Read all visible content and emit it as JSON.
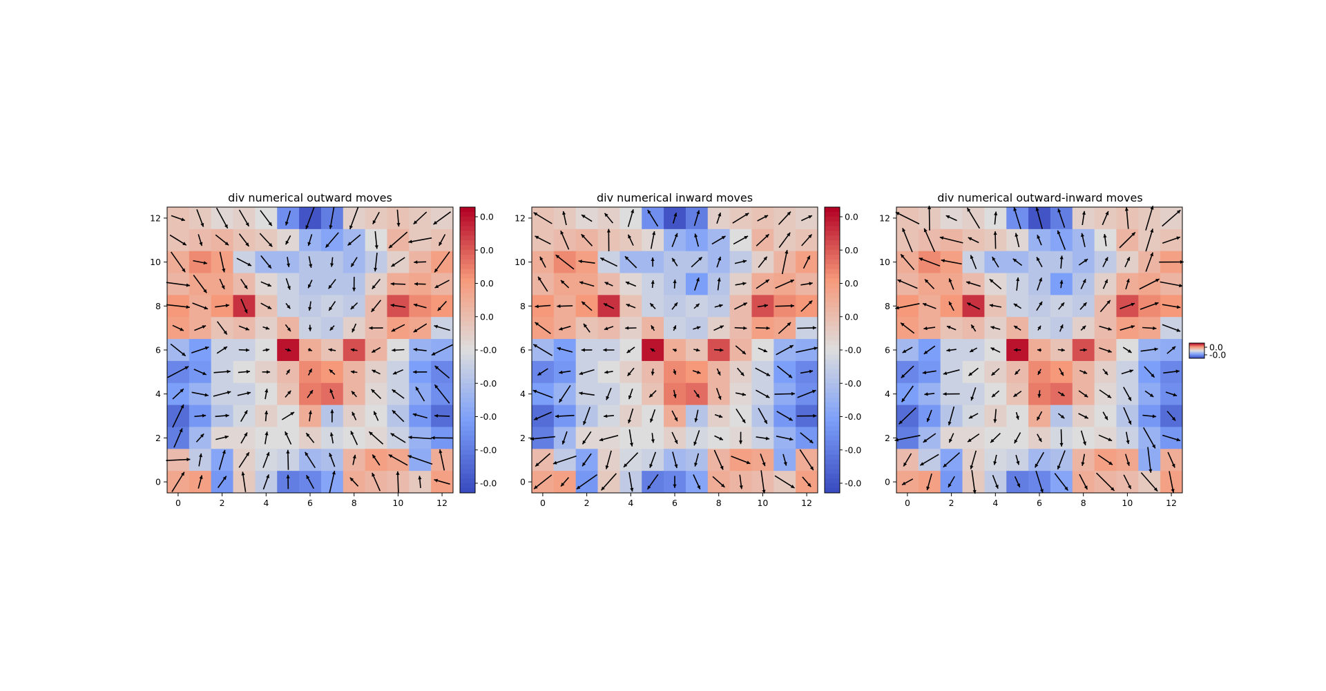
{
  "figure": {
    "background": "#ffffff",
    "colormap": "coolwarm",
    "colors": {
      "cold": "#3b4cc0",
      "neutral": "#dddddd",
      "hot": "#b40426",
      "arrow": "#000000"
    }
  },
  "chart_data": [
    {
      "type": "heatmap",
      "title": "div numerical outward moves",
      "xlabel": "",
      "ylabel": "",
      "grid_size": 13,
      "xlim": [
        -0.5,
        12.5
      ],
      "ylim": [
        -0.5,
        12.5
      ],
      "x_ticks": [
        0,
        2,
        4,
        6,
        8,
        10,
        12
      ],
      "y_ticks": [
        0,
        2,
        4,
        6,
        8,
        10,
        12
      ],
      "overlay": "quiver",
      "colorbar": {
        "tick_labels": [
          "0.0",
          "0.0",
          "0.0",
          "0.0",
          "-0.0",
          "-0.0",
          "-0.0",
          "-0.0",
          "-0.0"
        ]
      },
      "values_note": "",
      "values": [
        [
          0.2,
          0.15,
          0.05,
          0.1,
          0.0,
          -0.6,
          -0.95,
          -0.7,
          0.1,
          0.15,
          0.2,
          0.15,
          0.1
        ],
        [
          0.2,
          0.25,
          0.3,
          0.2,
          0.15,
          0.05,
          -0.35,
          -0.45,
          -0.3,
          0.0,
          0.3,
          0.15,
          0.2
        ],
        [
          0.35,
          0.55,
          0.45,
          -0.1,
          -0.3,
          -0.3,
          -0.2,
          -0.2,
          -0.3,
          -0.15,
          0.1,
          0.3,
          0.45
        ],
        [
          0.3,
          0.4,
          0.4,
          0.25,
          0.05,
          -0.1,
          -0.2,
          -0.2,
          -0.2,
          0.1,
          0.35,
          0.4,
          0.3
        ],
        [
          0.5,
          0.35,
          0.5,
          0.85,
          0.2,
          -0.1,
          -0.15,
          -0.1,
          -0.15,
          0.25,
          0.75,
          0.55,
          0.5
        ],
        [
          0.45,
          0.35,
          0.2,
          0.25,
          0.1,
          0.3,
          -0.1,
          -0.15,
          0.1,
          0.25,
          0.45,
          0.4,
          -0.1
        ],
        [
          -0.3,
          -0.5,
          -0.1,
          -0.1,
          0.0,
          0.95,
          0.35,
          0.2,
          0.75,
          0.3,
          0.0,
          -0.35,
          -0.4
        ],
        [
          -0.65,
          -0.55,
          -0.1,
          0.0,
          0.1,
          0.25,
          0.55,
          0.5,
          0.3,
          0.1,
          -0.1,
          -0.5,
          -0.65
        ],
        [
          -0.5,
          -0.35,
          -0.1,
          -0.1,
          0.0,
          0.2,
          0.6,
          0.65,
          0.3,
          0.05,
          -0.1,
          -0.4,
          -0.6
        ],
        [
          -0.8,
          -0.55,
          -0.2,
          -0.05,
          0.1,
          0.0,
          0.35,
          -0.2,
          0.1,
          0.0,
          -0.2,
          -0.55,
          -0.8
        ],
        [
          -0.7,
          -0.3,
          0.05,
          0.05,
          0.0,
          0.0,
          0.1,
          -0.05,
          0.0,
          0.05,
          -0.1,
          -0.35,
          -0.55
        ],
        [
          0.25,
          -0.15,
          -0.45,
          0.1,
          -0.05,
          -0.1,
          -0.3,
          -0.25,
          0.3,
          0.45,
          0.4,
          -0.4,
          0.35
        ],
        [
          0.4,
          0.45,
          -0.55,
          0.15,
          -0.15,
          -0.7,
          -0.65,
          -0.45,
          0.35,
          0.3,
          0.25,
          0.15,
          0.45
        ]
      ]
    },
    {
      "type": "heatmap",
      "title": "div numerical inward moves",
      "xlabel": "",
      "ylabel": "",
      "grid_size": 13,
      "xlim": [
        -0.5,
        12.5
      ],
      "ylim": [
        -0.5,
        12.5
      ],
      "x_ticks": [
        0,
        2,
        4,
        6,
        8,
        10,
        12
      ],
      "y_ticks": [
        0,
        2,
        4,
        6,
        8,
        10,
        12
      ],
      "overlay": "quiver",
      "colorbar": {
        "tick_labels": [
          "0.0",
          "0.0",
          "0.0",
          "0.0",
          "-0.0",
          "-0.0",
          "-0.0",
          "-0.0",
          "-0.0"
        ]
      },
      "values": [
        [
          0.2,
          0.15,
          0.05,
          0.1,
          0.0,
          -0.6,
          -0.95,
          -0.7,
          0.1,
          0.15,
          0.2,
          0.15,
          0.1
        ],
        [
          0.2,
          0.25,
          0.3,
          0.2,
          0.15,
          0.05,
          -0.35,
          -0.45,
          -0.3,
          0.0,
          0.3,
          0.15,
          0.2
        ],
        [
          0.35,
          0.55,
          0.45,
          -0.1,
          -0.3,
          -0.3,
          -0.2,
          -0.2,
          -0.3,
          -0.15,
          0.1,
          0.3,
          0.45
        ],
        [
          0.3,
          0.4,
          0.4,
          0.25,
          0.05,
          -0.1,
          -0.2,
          -0.5,
          -0.2,
          0.1,
          0.35,
          0.4,
          0.3
        ],
        [
          0.5,
          0.35,
          0.5,
          0.85,
          0.2,
          -0.1,
          -0.15,
          -0.1,
          -0.15,
          0.25,
          0.75,
          0.55,
          0.5
        ],
        [
          0.45,
          0.35,
          0.2,
          0.25,
          0.1,
          0.3,
          -0.1,
          -0.15,
          0.1,
          0.25,
          0.45,
          0.4,
          -0.1
        ],
        [
          -0.3,
          -0.5,
          -0.1,
          -0.1,
          0.0,
          0.95,
          0.35,
          0.2,
          0.75,
          0.3,
          0.0,
          -0.35,
          -0.4
        ],
        [
          -0.65,
          -0.55,
          -0.1,
          0.0,
          0.1,
          0.25,
          0.55,
          0.5,
          0.3,
          0.1,
          -0.1,
          -0.5,
          -0.65
        ],
        [
          -0.5,
          -0.35,
          -0.1,
          -0.1,
          0.0,
          0.2,
          0.6,
          0.65,
          0.3,
          0.05,
          -0.1,
          -0.4,
          -0.6
        ],
        [
          -0.8,
          -0.55,
          -0.2,
          -0.05,
          0.1,
          0.0,
          0.35,
          -0.2,
          0.1,
          0.0,
          -0.2,
          -0.55,
          -0.8
        ],
        [
          -0.7,
          -0.3,
          0.05,
          0.05,
          0.0,
          0.0,
          0.1,
          -0.05,
          0.0,
          0.05,
          -0.1,
          -0.35,
          -0.55
        ],
        [
          0.25,
          -0.15,
          -0.45,
          0.1,
          -0.05,
          -0.1,
          -0.3,
          -0.25,
          0.3,
          0.45,
          0.4,
          -0.4,
          0.35
        ],
        [
          0.4,
          0.45,
          -0.55,
          0.15,
          -0.15,
          -0.7,
          -0.65,
          -0.45,
          0.35,
          0.3,
          0.25,
          0.15,
          0.45
        ]
      ]
    },
    {
      "type": "heatmap",
      "title": "div numerical outward-inward moves",
      "xlabel": "",
      "ylabel": "",
      "grid_size": 13,
      "xlim": [
        -0.5,
        12.5
      ],
      "ylim": [
        -0.5,
        12.5
      ],
      "x_ticks": [
        0,
        2,
        4,
        6,
        8,
        10,
        12
      ],
      "y_ticks": [
        0,
        2,
        4,
        6,
        8,
        10,
        12
      ],
      "overlay": "quiver",
      "colorbar": {
        "tick_labels": [
          "0.0",
          "-0.0"
        ]
      },
      "values": [
        [
          0.2,
          0.15,
          0.05,
          0.1,
          0.0,
          -0.6,
          -0.95,
          -0.7,
          0.1,
          0.15,
          0.2,
          0.15,
          0.1
        ],
        [
          0.2,
          0.25,
          0.3,
          0.2,
          0.15,
          0.05,
          -0.35,
          -0.45,
          -0.3,
          0.0,
          0.3,
          0.15,
          0.2
        ],
        [
          0.35,
          0.55,
          0.45,
          -0.1,
          -0.3,
          -0.3,
          -0.2,
          -0.2,
          -0.3,
          -0.15,
          0.1,
          0.3,
          0.45
        ],
        [
          0.3,
          0.4,
          0.4,
          0.25,
          0.05,
          -0.1,
          -0.2,
          -0.5,
          -0.2,
          0.1,
          0.35,
          0.4,
          0.3
        ],
        [
          0.5,
          0.35,
          0.5,
          0.85,
          0.2,
          -0.1,
          -0.15,
          -0.1,
          -0.15,
          0.25,
          0.75,
          0.55,
          0.5
        ],
        [
          0.45,
          0.35,
          0.2,
          0.25,
          0.1,
          0.3,
          -0.1,
          -0.15,
          0.1,
          0.25,
          0.45,
          0.4,
          -0.1
        ],
        [
          -0.3,
          -0.5,
          -0.1,
          -0.1,
          0.0,
          0.95,
          0.35,
          0.2,
          0.75,
          0.3,
          0.0,
          -0.35,
          -0.4
        ],
        [
          -0.65,
          -0.55,
          -0.1,
          0.0,
          0.1,
          0.25,
          0.55,
          0.5,
          0.3,
          0.1,
          -0.1,
          -0.5,
          -0.65
        ],
        [
          -0.5,
          -0.35,
          -0.1,
          -0.1,
          0.0,
          0.2,
          0.6,
          0.65,
          0.3,
          0.05,
          -0.1,
          -0.4,
          -0.6
        ],
        [
          -0.8,
          -0.55,
          -0.2,
          -0.05,
          0.1,
          0.0,
          0.35,
          -0.2,
          0.1,
          0.0,
          -0.2,
          -0.55,
          -0.8
        ],
        [
          -0.7,
          -0.3,
          0.05,
          0.05,
          0.0,
          0.0,
          0.1,
          -0.05,
          0.0,
          0.05,
          -0.1,
          -0.35,
          -0.55
        ],
        [
          0.25,
          -0.15,
          -0.45,
          0.1,
          -0.05,
          -0.1,
          -0.3,
          -0.25,
          0.3,
          0.45,
          0.4,
          -0.4,
          0.35
        ],
        [
          0.4,
          0.45,
          -0.55,
          0.15,
          -0.15,
          -0.7,
          -0.65,
          -0.45,
          0.35,
          0.3,
          0.25,
          0.15,
          0.45
        ]
      ]
    }
  ]
}
